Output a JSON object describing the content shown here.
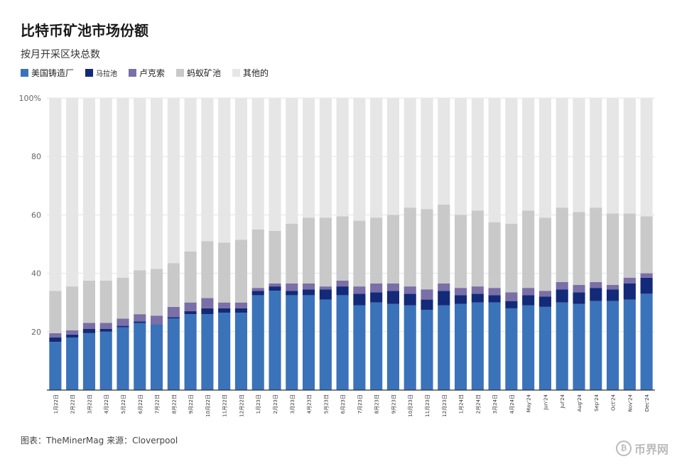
{
  "title": "比特币矿池市场份额",
  "subtitle": "按月开采区块总数",
  "footer": "图表：TheMinerMag 来源：Cloverpool",
  "watermark": {
    "badge": "₿",
    "text": "币界网"
  },
  "chart_data": {
    "type": "bar",
    "stacked": true,
    "ylim": [
      0,
      100
    ],
    "yticks": [
      20,
      40,
      60,
      80
    ],
    "ytick_top_label": "100%",
    "categories": [
      "1月22日",
      "2月22日",
      "3月22日",
      "4月22日",
      "5月22日",
      "6月22日",
      "7月22日",
      "8月22日",
      "9月22日",
      "10月22日",
      "11月22日",
      "12月22日",
      "1月23日",
      "2月23日",
      "3月23日",
      "4月23日",
      "5月23日",
      "6月23日",
      "7月23日",
      "8月23日",
      "9月23日",
      "10月23日",
      "11月23日",
      "12月23日",
      "1月24日",
      "2月24日",
      "3月24日",
      "4月24日",
      "May'24",
      "Jun'24",
      "Jul'24",
      "Aug'24",
      "Sep'24",
      "Oct'24",
      "Nov'24",
      "Dec'24"
    ],
    "series": [
      {
        "name": "美国铸造厂",
        "color": "#3a73b9",
        "values": [
          16.5,
          18,
          19.5,
          20,
          21.5,
          23,
          22.5,
          24.5,
          26,
          26,
          26.5,
          26.5,
          32.5,
          34,
          32.5,
          32.5,
          31,
          32.5,
          29,
          30,
          29.5,
          29,
          27.5,
          29,
          29.5,
          30,
          30,
          28,
          29,
          28.5,
          30,
          29.5,
          30.5,
          30.5,
          31,
          33
        ]
      },
      {
        "name": "马拉池",
        "color": "#132a78",
        "values": [
          1.5,
          1,
          1.5,
          1,
          0.5,
          0.5,
          0,
          0.5,
          1,
          2,
          1.5,
          1.5,
          1.5,
          1.5,
          1.5,
          2,
          3.5,
          3,
          4,
          3.5,
          4.5,
          4,
          3.5,
          5,
          3,
          3,
          2.5,
          2.5,
          3.5,
          3.5,
          4.5,
          4,
          4.5,
          4,
          5.5,
          5.5
        ]
      },
      {
        "name": "卢克索",
        "color": "#7a6fa6",
        "values": [
          1.5,
          1.5,
          2,
          2,
          2.5,
          2.5,
          3,
          3.5,
          3,
          3.5,
          2,
          2,
          1,
          1,
          2.5,
          2,
          1,
          2,
          2.5,
          3,
          2.5,
          2.5,
          3.5,
          2.5,
          2.5,
          2.5,
          2.5,
          3,
          2.5,
          2,
          2.5,
          2.5,
          2,
          1.5,
          2,
          1.5
        ]
      },
      {
        "name": "蚂蚁矿池",
        "color": "#c9c9c9",
        "values": [
          14.5,
          15,
          14.5,
          14.5,
          14,
          15,
          16,
          15,
          17.5,
          19.5,
          20.5,
          21.5,
          20,
          18,
          20.5,
          22.5,
          23.5,
          22,
          22.5,
          22.5,
          23.5,
          27,
          27.5,
          27,
          25,
          26,
          22.5,
          23.5,
          26.5,
          25,
          25.5,
          25,
          25.5,
          24.5,
          22,
          19.5
        ]
      },
      {
        "name": "其他的",
        "color": "#e6e6e6",
        "values": [
          66,
          64.5,
          62.5,
          62.5,
          61.5,
          59,
          58.5,
          56.5,
          52.5,
          49,
          49.5,
          48.5,
          45,
          45.5,
          43,
          41,
          41,
          40.5,
          42,
          41,
          40,
          37.5,
          38,
          36.5,
          40,
          38.5,
          42.5,
          43,
          38.5,
          41,
          37.5,
          39,
          37.5,
          39.5,
          39.5,
          40.5
        ]
      }
    ]
  }
}
